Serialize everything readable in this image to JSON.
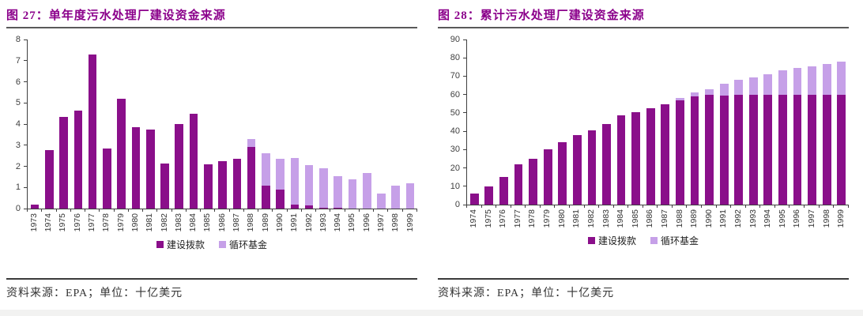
{
  "panels": [
    {
      "title": "图 27：单年度污水处理厂建设资金来源",
      "source_note": "资料来源：EPA；单位：十亿美元"
    },
    {
      "title": "图 28：累计污水处理厂建设资金来源",
      "source_note": "资料来源：EPA；单位：十亿美元"
    }
  ],
  "colors": {
    "title_purple": "#8b008b",
    "grant_dark_purple": "#8a0f8a",
    "revolving_light_purple": "#c6a0e8",
    "axis_text": "#3f3f3f"
  },
  "chart_data": [
    {
      "type": "bar",
      "stacked": true,
      "title": "图 27：单年度污水处理厂建设资金来源",
      "xlabel": "",
      "ylabel": "",
      "unit": "十亿美元",
      "grid": false,
      "legend_position": "bottom",
      "ylim": [
        0,
        8
      ],
      "ytick_step": 1,
      "categories": [
        "1973",
        "1974",
        "1975",
        "1976",
        "1977",
        "1978",
        "1979",
        "1980",
        "1981",
        "1982",
        "1983",
        "1984",
        "1985",
        "1986",
        "1987",
        "1988",
        "1989",
        "1990",
        "1991",
        "1992",
        "1993",
        "1994",
        "1995",
        "1996",
        "1997",
        "1998",
        "1999"
      ],
      "series": [
        {
          "name": "建设拨款",
          "color": "#8a0f8a",
          "values": [
            0.2,
            2.75,
            4.35,
            4.65,
            7.3,
            2.85,
            5.2,
            3.85,
            3.75,
            2.15,
            4.0,
            4.5,
            2.1,
            2.25,
            2.35,
            2.9,
            1.1,
            0.9,
            0.2,
            0.15,
            0.05,
            0.05,
            0,
            0,
            0,
            0,
            0
          ]
        },
        {
          "name": "循环基金",
          "color": "#c6a0e8",
          "values": [
            0,
            0,
            0,
            0,
            0,
            0,
            0,
            0,
            0,
            0,
            0,
            0,
            0,
            0,
            0,
            0.4,
            1.5,
            1.45,
            2.2,
            1.9,
            1.85,
            1.5,
            1.4,
            1.7,
            0.7,
            1.1,
            1.2
          ]
        }
      ]
    },
    {
      "type": "bar",
      "stacked": true,
      "title": "图 28：累计污水处理厂建设资金来源",
      "xlabel": "",
      "ylabel": "",
      "unit": "十亿美元",
      "grid": false,
      "legend_position": "bottom",
      "ylim": [
        0,
        90
      ],
      "ytick_step": 10,
      "categories": [
        "1974",
        "1975",
        "1976",
        "1977",
        "1978",
        "1979",
        "1980",
        "1981",
        "1982",
        "1983",
        "1984",
        "1985",
        "1986",
        "1987",
        "1988",
        "1989",
        "1990",
        "1991",
        "1992",
        "1993",
        "1994",
        "1995",
        "1996",
        "1997",
        "1998",
        "1999"
      ],
      "series": [
        {
          "name": "建设拨款",
          "color": "#8a0f8a",
          "values": [
            6,
            10,
            15,
            22,
            25,
            30,
            34,
            38,
            40.5,
            44,
            48.5,
            50.5,
            52.5,
            54.5,
            57,
            59,
            60,
            59.5,
            60,
            60,
            60,
            60,
            60,
            60,
            60,
            60
          ]
        },
        {
          "name": "循环基金",
          "color": "#c6a0e8",
          "values": [
            0,
            0,
            0,
            0,
            0,
            0,
            0,
            0,
            0,
            0,
            0,
            0,
            0,
            0,
            1,
            2,
            3,
            6.5,
            8,
            9.5,
            11,
            13,
            14.5,
            15.5,
            16.5,
            18
          ]
        }
      ]
    }
  ]
}
